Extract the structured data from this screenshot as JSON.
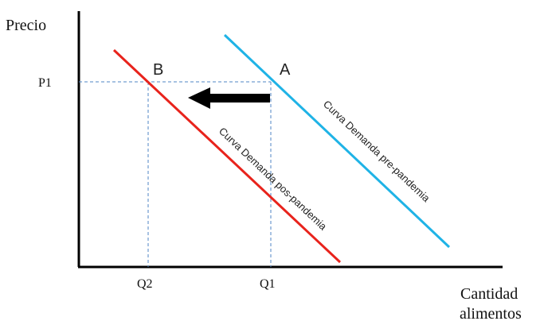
{
  "axes": {
    "y_label": "Precio",
    "x_label_line1": "Cantidad",
    "x_label_line2": "alimentos"
  },
  "ticks": {
    "p1": "P1",
    "q1": "Q1",
    "q2": "Q2"
  },
  "points": {
    "a": "A",
    "b": "B"
  },
  "curves": {
    "pre": {
      "label": "Curva Demanda pre-pandemia",
      "color": "#1fb3e6"
    },
    "post": {
      "label": "Curva Demanda pos-pandemia",
      "color": "#e8231c"
    }
  },
  "colors": {
    "guide": "#4f86c6",
    "arrow": "#000000",
    "axis": "#000000"
  }
}
